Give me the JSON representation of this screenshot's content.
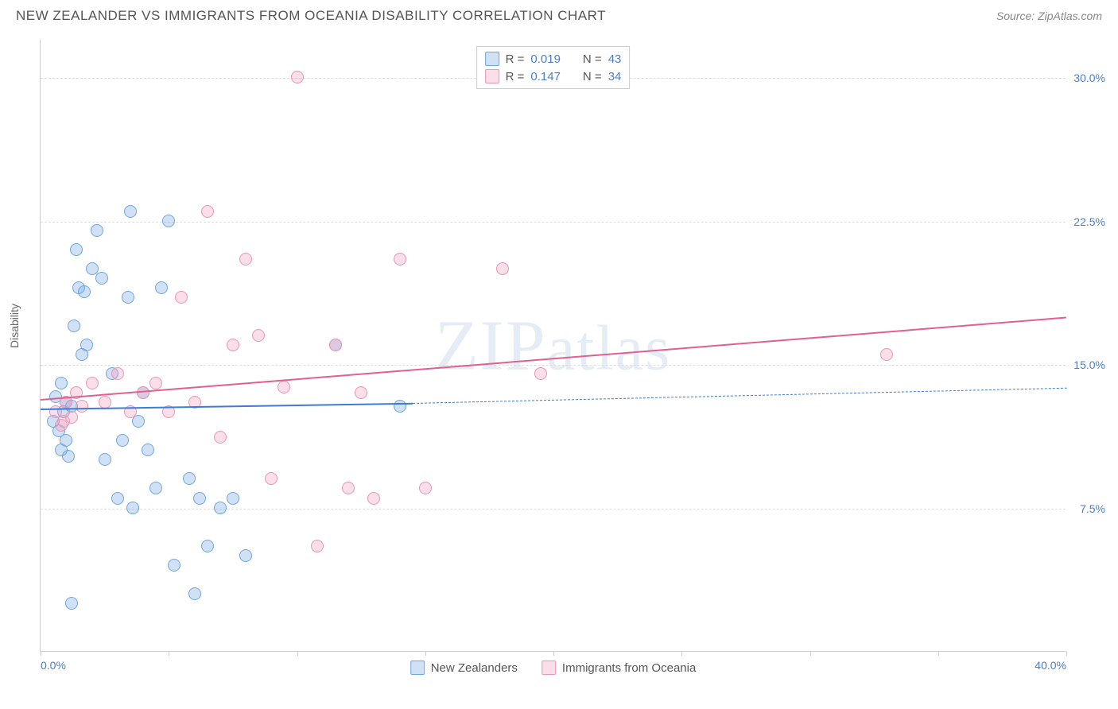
{
  "header": {
    "title": "NEW ZEALANDER VS IMMIGRANTS FROM OCEANIA DISABILITY CORRELATION CHART",
    "source": "Source: ZipAtlas.com"
  },
  "ylabel": "Disability",
  "watermark": "ZIPatlas",
  "axes": {
    "xlim": [
      0,
      40
    ],
    "ylim": [
      0,
      32
    ],
    "x_ticks": [
      0,
      5,
      10,
      15,
      20,
      25,
      30,
      35,
      40
    ],
    "x_tick_labels": {
      "0": "0.0%",
      "40": "40.0%"
    },
    "y_ticks": [
      7.5,
      15.0,
      22.5,
      30.0
    ],
    "y_tick_labels": [
      "7.5%",
      "15.0%",
      "22.5%",
      "30.0%"
    ],
    "tick_label_color": "#4a7ec9",
    "grid_color": "#dddddd",
    "axis_color": "#cccccc"
  },
  "series": [
    {
      "name": "New Zealanders",
      "fill": "rgba(120,170,230,0.35)",
      "stroke": "#6fa5e0",
      "marker_radius": 8,
      "r": "0.019",
      "n": "43",
      "trend": {
        "x1": 0,
        "y1": 12.7,
        "x2": 14.5,
        "y2": 13.0,
        "dash_to_x": 40,
        "dash_to_y": 13.8,
        "color": "#3d7cd6",
        "width": 2
      },
      "points": [
        [
          0.5,
          12.0
        ],
        [
          0.6,
          13.3
        ],
        [
          0.7,
          11.5
        ],
        [
          0.8,
          14.0
        ],
        [
          0.8,
          10.5
        ],
        [
          0.9,
          12.5
        ],
        [
          1.0,
          13.0
        ],
        [
          1.0,
          11.0
        ],
        [
          1.1,
          10.2
        ],
        [
          1.2,
          12.8
        ],
        [
          1.3,
          17.0
        ],
        [
          1.4,
          21.0
        ],
        [
          1.5,
          19.0
        ],
        [
          1.6,
          15.5
        ],
        [
          1.7,
          18.8
        ],
        [
          1.8,
          16.0
        ],
        [
          2.0,
          20.0
        ],
        [
          2.2,
          22.0
        ],
        [
          2.4,
          19.5
        ],
        [
          2.5,
          10.0
        ],
        [
          2.8,
          14.5
        ],
        [
          3.0,
          8.0
        ],
        [
          3.2,
          11.0
        ],
        [
          3.4,
          18.5
        ],
        [
          3.6,
          7.5
        ],
        [
          3.8,
          12.0
        ],
        [
          4.0,
          13.5
        ],
        [
          4.2,
          10.5
        ],
        [
          4.5,
          8.5
        ],
        [
          4.7,
          19.0
        ],
        [
          5.0,
          22.5
        ],
        [
          5.2,
          4.5
        ],
        [
          5.8,
          9.0
        ],
        [
          6.0,
          3.0
        ],
        [
          6.2,
          8.0
        ],
        [
          6.5,
          5.5
        ],
        [
          7.0,
          7.5
        ],
        [
          7.5,
          8.0
        ],
        [
          8.0,
          5.0
        ],
        [
          3.5,
          23.0
        ],
        [
          1.2,
          2.5
        ],
        [
          11.5,
          16.0
        ],
        [
          14.0,
          12.8
        ]
      ]
    },
    {
      "name": "Immigrants from Oceania",
      "fill": "rgba(240,160,190,0.35)",
      "stroke": "#e895b5",
      "marker_radius": 8,
      "r": "0.147",
      "n": "34",
      "trend": {
        "x1": 0,
        "y1": 13.2,
        "x2": 40,
        "y2": 17.5,
        "color": "#e06090",
        "width": 2
      },
      "points": [
        [
          0.6,
          12.5
        ],
        [
          0.8,
          11.8
        ],
        [
          0.9,
          12.0
        ],
        [
          1.0,
          13.0
        ],
        [
          1.2,
          12.2
        ],
        [
          1.4,
          13.5
        ],
        [
          1.6,
          12.8
        ],
        [
          2.0,
          14.0
        ],
        [
          2.5,
          13.0
        ],
        [
          3.0,
          14.5
        ],
        [
          3.5,
          12.5
        ],
        [
          4.0,
          13.5
        ],
        [
          4.5,
          14.0
        ],
        [
          5.0,
          12.5
        ],
        [
          5.5,
          18.5
        ],
        [
          6.0,
          13.0
        ],
        [
          6.5,
          23.0
        ],
        [
          7.0,
          11.2
        ],
        [
          7.5,
          16.0
        ],
        [
          8.0,
          20.5
        ],
        [
          8.5,
          16.5
        ],
        [
          9.0,
          9.0
        ],
        [
          9.5,
          13.8
        ],
        [
          10.0,
          30.0
        ],
        [
          10.8,
          5.5
        ],
        [
          11.5,
          16.0
        ],
        [
          12.0,
          8.5
        ],
        [
          12.5,
          13.5
        ],
        [
          13.0,
          8.0
        ],
        [
          14.0,
          20.5
        ],
        [
          15.0,
          8.5
        ],
        [
          18.0,
          20.0
        ],
        [
          19.5,
          14.5
        ],
        [
          33.0,
          15.5
        ]
      ]
    }
  ],
  "legend": {
    "r_label": "R =",
    "n_label": "N ="
  }
}
